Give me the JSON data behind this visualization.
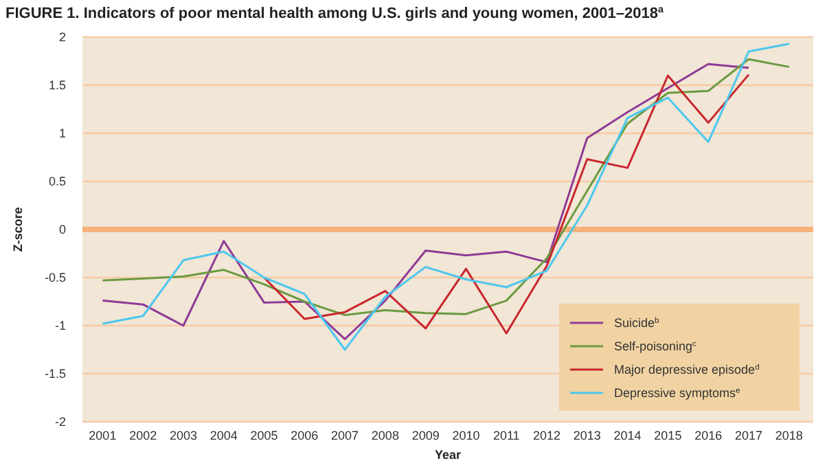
{
  "chart_data": {
    "type": "line",
    "title": "FIGURE 1. Indicators of poor mental health among U.S. girls and young women, 2001–2018$^{a}$",
    "xlabel": "Year",
    "ylabel": "Z-score",
    "x": [
      2001,
      2002,
      2003,
      2004,
      2005,
      2006,
      2007,
      2008,
      2009,
      2010,
      2011,
      2012,
      2013,
      2014,
      2015,
      2016,
      2017,
      2018
    ],
    "xlim": [
      2000.5,
      2018.6
    ],
    "xticks": [
      2001,
      2002,
      2003,
      2004,
      2005,
      2006,
      2007,
      2008,
      2009,
      2010,
      2011,
      2012,
      2013,
      2014,
      2015,
      2016,
      2017,
      2018
    ],
    "ylim": [
      -2,
      2
    ],
    "yticks": [
      -2,
      -1.5,
      -1,
      -0.5,
      0,
      0.5,
      1,
      1.5,
      2
    ],
    "grid": "y",
    "legend": "bottom right",
    "marker": "none",
    "line_style": "solid",
    "ref_lines": [
      {
        "axis": "y",
        "value": 0,
        "color": "#f6b27a"
      }
    ],
    "series": [
      {
        "name": "Suicide$^{b}$",
        "color": "#8e3a96",
        "values": [
          -0.74,
          -0.78,
          -1.0,
          -0.12,
          -0.76,
          -0.75,
          -1.14,
          -0.74,
          -0.22,
          -0.27,
          -0.23,
          -0.34,
          0.95,
          1.22,
          1.47,
          1.72,
          1.68,
          null
        ]
      },
      {
        "name": "Self-poisoning$^{c}$",
        "color": "#6a9a3f",
        "values": [
          -0.53,
          -0.51,
          -0.49,
          -0.42,
          -0.57,
          -0.75,
          -0.89,
          -0.84,
          -0.87,
          -0.88,
          -0.74,
          -0.3,
          0.4,
          1.1,
          1.42,
          1.44,
          1.77,
          1.69
        ]
      },
      {
        "name": "Major depressive episode$^{d}$",
        "color": "#c8262e",
        "values": [
          null,
          null,
          null,
          null,
          -0.5,
          -0.93,
          -0.86,
          -0.64,
          -1.03,
          -0.41,
          -1.08,
          -0.38,
          0.73,
          0.64,
          1.6,
          1.11,
          1.61,
          null
        ]
      },
      {
        "name": "Depressive symptoms$^{e}$",
        "color": "#4cc7ee",
        "values": [
          -0.98,
          -0.9,
          -0.32,
          -0.23,
          -0.5,
          -0.67,
          -1.25,
          -0.7,
          -0.39,
          -0.52,
          -0.6,
          -0.43,
          0.25,
          1.16,
          1.37,
          0.91,
          1.85,
          1.93
        ]
      }
    ]
  }
}
